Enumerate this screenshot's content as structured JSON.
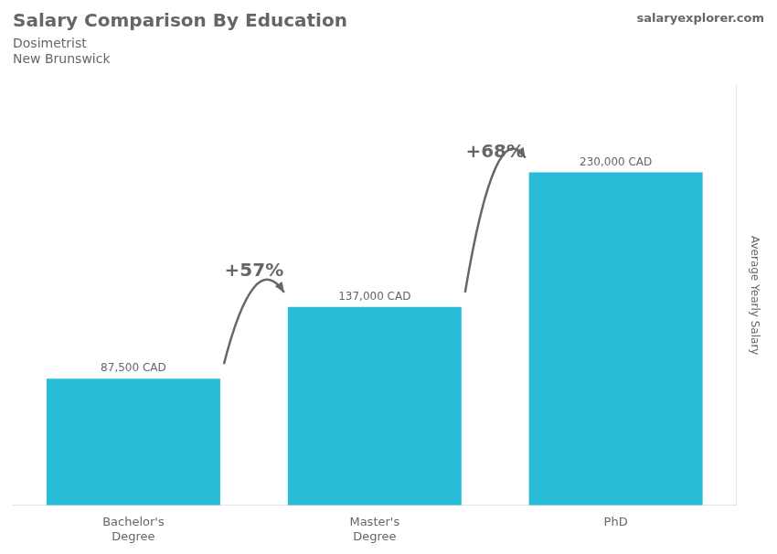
{
  "chart_data": {
    "type": "bar",
    "title": "Salary Comparison By Education",
    "subtitle": [
      "Dosimetrist",
      "New Brunswick"
    ],
    "source": "salaryexplorer.com",
    "categories": [
      "Bachelor's\nDegree",
      "Master's\nDegree",
      "PhD"
    ],
    "values": [
      87500,
      137000,
      230000
    ],
    "value_labels": [
      "87,500 CAD",
      "137,000 CAD",
      "230,000 CAD"
    ],
    "data_labels": true,
    "color": "#29bcd8",
    "ylabel": "Average Yearly Salary",
    "ylim": [
      0,
      290000
    ],
    "yticks": [],
    "tick_labels": "x",
    "grid": false,
    "annotations": [
      {
        "text": "+57%",
        "from": "Bachelor's\nDegree",
        "to": "Master's\nDegree"
      },
      {
        "text": "+68%",
        "from": "Master's\nDegree",
        "to": "PhD"
      }
    ]
  }
}
